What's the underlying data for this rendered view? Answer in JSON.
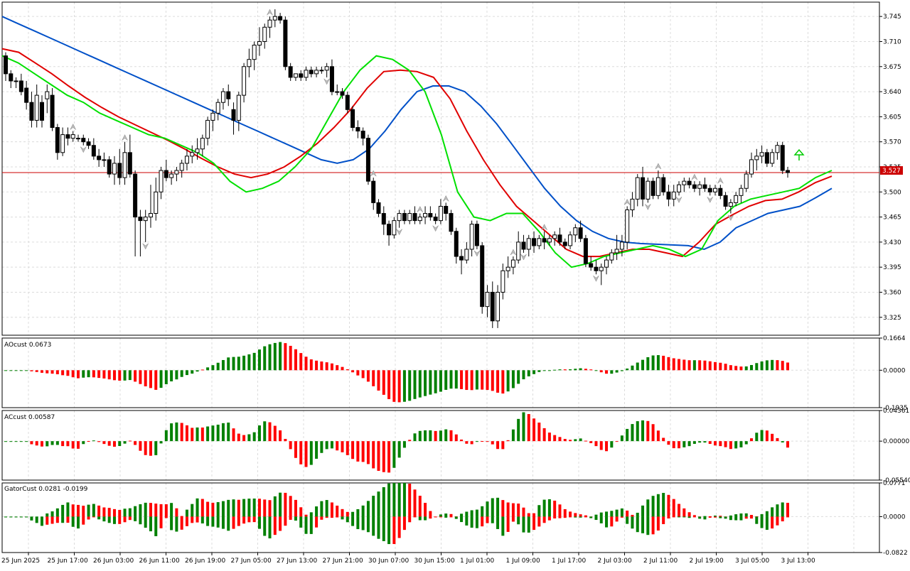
{
  "chart_data": [
    {
      "type": "candlestick",
      "pane": "price",
      "ylim": [
        3.3,
        3.765
      ],
      "y_ticks": [
        "3.745",
        "3.710",
        "3.675",
        "3.640",
        "3.605",
        "3.570",
        "3.535",
        "3.500",
        "3.465",
        "3.430",
        "3.395",
        "3.360",
        "3.325"
      ],
      "current_price_label": "3.527",
      "current_price": 3.527,
      "ohlc": [
        [
          3.69,
          3.695,
          3.655,
          3.665
        ],
        [
          3.665,
          3.67,
          3.645,
          3.655
        ],
        [
          3.655,
          3.66,
          3.645,
          3.655
        ],
        [
          3.655,
          3.665,
          3.635,
          3.64
        ],
        [
          3.645,
          3.655,
          3.615,
          3.625
        ],
        [
          3.625,
          3.64,
          3.59,
          3.6
        ],
        [
          3.6,
          3.65,
          3.59,
          3.635
        ],
        [
          3.625,
          3.635,
          3.59,
          3.6
        ],
        [
          3.63,
          3.65,
          3.61,
          3.64
        ],
        [
          3.635,
          3.645,
          3.585,
          3.59
        ],
        [
          3.59,
          3.595,
          3.545,
          3.555
        ],
        [
          3.555,
          3.59,
          3.55,
          3.58
        ],
        [
          3.58,
          3.59,
          3.565,
          3.575
        ],
        [
          3.575,
          3.585,
          3.57,
          3.58
        ],
        [
          3.575,
          3.58,
          3.57,
          3.575
        ],
        [
          3.575,
          3.58,
          3.565,
          3.57
        ],
        [
          3.57,
          3.575,
          3.56,
          3.565
        ],
        [
          3.565,
          3.575,
          3.545,
          3.55
        ],
        [
          3.55,
          3.56,
          3.535,
          3.545
        ],
        [
          3.545,
          3.555,
          3.535,
          3.545
        ],
        [
          3.545,
          3.55,
          3.52,
          3.525
        ],
        [
          3.525,
          3.55,
          3.51,
          3.54
        ],
        [
          3.54,
          3.56,
          3.51,
          3.52
        ],
        [
          3.52,
          3.57,
          3.51,
          3.555
        ],
        [
          3.555,
          3.58,
          3.52,
          3.525
        ],
        [
          3.525,
          3.53,
          3.41,
          3.465
        ],
        [
          3.465,
          3.475,
          3.41,
          3.46
        ],
        [
          3.46,
          3.475,
          3.43,
          3.465
        ],
        [
          3.465,
          3.51,
          3.45,
          3.47
        ],
        [
          3.47,
          3.52,
          3.46,
          3.5
        ],
        [
          3.5,
          3.535,
          3.49,
          3.53
        ],
        [
          3.53,
          3.545,
          3.515,
          3.52
        ],
        [
          3.52,
          3.53,
          3.51,
          3.525
        ],
        [
          3.525,
          3.535,
          3.515,
          3.53
        ],
        [
          3.53,
          3.545,
          3.52,
          3.54
        ],
        [
          3.54,
          3.56,
          3.53,
          3.55
        ],
        [
          3.55,
          3.565,
          3.54,
          3.555
        ],
        [
          3.555,
          3.575,
          3.545,
          3.56
        ],
        [
          3.56,
          3.58,
          3.55,
          3.575
        ],
        [
          3.575,
          3.605,
          3.565,
          3.6
        ],
        [
          3.6,
          3.615,
          3.585,
          3.61
        ],
        [
          3.61,
          3.63,
          3.6,
          3.625
        ],
        [
          3.625,
          3.645,
          3.615,
          3.64
        ],
        [
          3.64,
          3.65,
          3.62,
          3.63
        ],
        [
          3.615,
          3.625,
          3.58,
          3.6
        ],
        [
          3.6,
          3.64,
          3.585,
          3.635
        ],
        [
          3.635,
          3.68,
          3.625,
          3.675
        ],
        [
          3.675,
          3.7,
          3.66,
          3.685
        ],
        [
          3.685,
          3.71,
          3.67,
          3.705
        ],
        [
          3.705,
          3.73,
          3.69,
          3.71
        ],
        [
          3.71,
          3.735,
          3.7,
          3.73
        ],
        [
          3.73,
          3.745,
          3.715,
          3.74
        ],
        [
          3.74,
          3.755,
          3.73,
          3.745
        ],
        [
          3.745,
          3.75,
          3.735,
          3.74
        ],
        [
          3.74,
          3.745,
          3.67,
          3.675
        ],
        [
          3.675,
          3.68,
          3.655,
          3.66
        ],
        [
          3.66,
          3.665,
          3.655,
          3.665
        ],
        [
          3.665,
          3.67,
          3.655,
          3.66
        ],
        [
          3.66,
          3.675,
          3.655,
          3.67
        ],
        [
          3.67,
          3.675,
          3.66,
          3.665
        ],
        [
          3.665,
          3.675,
          3.66,
          3.67
        ],
        [
          3.67,
          3.675,
          3.665,
          3.67
        ],
        [
          3.67,
          3.68,
          3.66,
          3.675
        ],
        [
          3.675,
          3.685,
          3.635,
          3.64
        ],
        [
          3.64,
          3.65,
          3.635,
          3.64
        ],
        [
          3.64,
          3.645,
          3.63,
          3.635
        ],
        [
          3.635,
          3.64,
          3.61,
          3.615
        ],
        [
          3.615,
          3.62,
          3.585,
          3.59
        ],
        [
          3.59,
          3.6,
          3.575,
          3.585
        ],
        [
          3.585,
          3.59,
          3.565,
          3.575
        ],
        [
          3.575,
          3.58,
          3.51,
          3.515
        ],
        [
          3.515,
          3.52,
          3.475,
          3.485
        ],
        [
          3.485,
          3.49,
          3.465,
          3.47
        ],
        [
          3.47,
          3.48,
          3.44,
          3.455
        ],
        [
          3.455,
          3.46,
          3.425,
          3.44
        ],
        [
          3.44,
          3.465,
          3.435,
          3.46
        ],
        [
          3.46,
          3.475,
          3.45,
          3.47
        ],
        [
          3.47,
          3.475,
          3.455,
          3.46
        ],
        [
          3.46,
          3.475,
          3.455,
          3.47
        ],
        [
          3.47,
          3.48,
          3.455,
          3.46
        ],
        [
          3.46,
          3.47,
          3.455,
          3.465
        ],
        [
          3.465,
          3.48,
          3.455,
          3.47
        ],
        [
          3.47,
          3.48,
          3.46,
          3.465
        ],
        [
          3.465,
          3.47,
          3.455,
          3.46
        ],
        [
          3.46,
          3.49,
          3.455,
          3.48
        ],
        [
          3.48,
          3.485,
          3.46,
          3.47
        ],
        [
          3.47,
          3.475,
          3.44,
          3.445
        ],
        [
          3.445,
          3.45,
          3.4,
          3.41
        ],
        [
          3.41,
          3.42,
          3.385,
          3.405
        ],
        [
          3.405,
          3.43,
          3.4,
          3.42
        ],
        [
          3.42,
          3.46,
          3.41,
          3.455
        ],
        [
          3.455,
          3.46,
          3.42,
          3.425
        ],
        [
          3.425,
          3.43,
          3.33,
          3.34
        ],
        [
          3.34,
          3.37,
          3.325,
          3.36
        ],
        [
          3.36,
          3.375,
          3.31,
          3.32
        ],
        [
          3.32,
          3.37,
          3.31,
          3.36
        ],
        [
          3.36,
          3.4,
          3.35,
          3.39
        ],
        [
          3.39,
          3.41,
          3.38,
          3.395
        ],
        [
          3.395,
          3.41,
          3.385,
          3.405
        ],
        [
          3.405,
          3.445,
          3.4,
          3.43
        ],
        [
          3.43,
          3.44,
          3.415,
          3.42
        ],
        [
          3.42,
          3.44,
          3.41,
          3.435
        ],
        [
          3.435,
          3.445,
          3.415,
          3.425
        ],
        [
          3.425,
          3.44,
          3.42,
          3.435
        ],
        [
          3.435,
          3.445,
          3.42,
          3.43
        ],
        [
          3.43,
          3.44,
          3.425,
          3.435
        ],
        [
          3.435,
          3.445,
          3.425,
          3.44
        ],
        [
          3.44,
          3.45,
          3.425,
          3.43
        ],
        [
          3.43,
          3.435,
          3.42,
          3.425
        ],
        [
          3.425,
          3.445,
          3.42,
          3.44
        ],
        [
          3.44,
          3.455,
          3.43,
          3.45
        ],
        [
          3.45,
          3.46,
          3.43,
          3.435
        ],
        [
          3.435,
          3.44,
          3.395,
          3.4
        ],
        [
          3.4,
          3.41,
          3.39,
          3.395
        ],
        [
          3.395,
          3.405,
          3.385,
          3.39
        ],
        [
          3.39,
          3.4,
          3.37,
          3.395
        ],
        [
          3.395,
          3.41,
          3.385,
          3.405
        ],
        [
          3.405,
          3.42,
          3.4,
          3.415
        ],
        [
          3.415,
          3.44,
          3.405,
          3.42
        ],
        [
          3.42,
          3.44,
          3.41,
          3.43
        ],
        [
          3.43,
          3.48,
          3.42,
          3.475
        ],
        [
          3.475,
          3.5,
          3.465,
          3.49
        ],
        [
          3.49,
          3.525,
          3.48,
          3.52
        ],
        [
          3.52,
          3.535,
          3.48,
          3.49
        ],
        [
          3.49,
          3.52,
          3.485,
          3.515
        ],
        [
          3.515,
          3.52,
          3.49,
          3.495
        ],
        [
          3.495,
          3.53,
          3.49,
          3.52
        ],
        [
          3.52,
          3.525,
          3.495,
          3.5
        ],
        [
          3.5,
          3.51,
          3.48,
          3.49
        ],
        [
          3.49,
          3.51,
          3.48,
          3.5
        ],
        [
          3.5,
          3.515,
          3.495,
          3.51
        ],
        [
          3.51,
          3.52,
          3.5,
          3.515
        ],
        [
          3.515,
          3.52,
          3.505,
          3.51
        ],
        [
          3.51,
          3.515,
          3.5,
          3.505
        ],
        [
          3.505,
          3.515,
          3.495,
          3.51
        ],
        [
          3.51,
          3.52,
          3.5,
          3.505
        ],
        [
          3.505,
          3.51,
          3.495,
          3.5
        ],
        [
          3.5,
          3.51,
          3.495,
          3.505
        ],
        [
          3.505,
          3.51,
          3.49,
          3.495
        ],
        [
          3.495,
          3.5,
          3.475,
          3.48
        ],
        [
          3.48,
          3.49,
          3.47,
          3.485
        ],
        [
          3.485,
          3.5,
          3.48,
          3.495
        ],
        [
          3.495,
          3.51,
          3.485,
          3.505
        ],
        [
          3.505,
          3.53,
          3.5,
          3.525
        ],
        [
          3.525,
          3.555,
          3.52,
          3.545
        ],
        [
          3.545,
          3.56,
          3.53,
          3.55
        ],
        [
          3.55,
          3.565,
          3.54,
          3.555
        ],
        [
          3.555,
          3.56,
          3.535,
          3.54
        ],
        [
          3.54,
          3.56,
          3.535,
          3.555
        ],
        [
          3.555,
          3.57,
          3.545,
          3.565
        ],
        [
          3.565,
          3.57,
          3.525,
          3.53
        ],
        [
          3.53,
          3.535,
          3.52,
          3.527
        ]
      ],
      "series": [
        {
          "name": "",
          "color": "#0050c8",
          "role": "alligator-jaw",
          "values": [
            3.745,
            3.735,
            3.725,
            3.715,
            3.705,
            3.695,
            3.685,
            3.675,
            3.665,
            3.655,
            3.645,
            3.635,
            3.625,
            3.615,
            3.605,
            3.595,
            3.585,
            3.575,
            3.565,
            3.555,
            3.545,
            3.54,
            3.545,
            3.56,
            3.585,
            3.615,
            3.64,
            3.648,
            3.648,
            3.64,
            3.62,
            3.595,
            3.565,
            3.535,
            3.505,
            3.48,
            3.46,
            3.445,
            3.435,
            3.43,
            3.428,
            3.427,
            3.426,
            3.425,
            3.42,
            3.43,
            3.45,
            3.46,
            3.47,
            3.475,
            3.48,
            3.492,
            3.505
          ]
        },
        {
          "name": "",
          "color": "#e00000",
          "role": "alligator-teeth",
          "values": [
            3.7,
            3.695,
            3.68,
            3.665,
            3.648,
            3.632,
            3.618,
            3.605,
            3.594,
            3.583,
            3.572,
            3.56,
            3.547,
            3.535,
            3.525,
            3.52,
            3.525,
            3.535,
            3.55,
            3.568,
            3.59,
            3.615,
            3.645,
            3.668,
            3.67,
            3.668,
            3.66,
            3.63,
            3.585,
            3.545,
            3.51,
            3.48,
            3.46,
            3.44,
            3.42,
            3.41,
            3.41,
            3.415,
            3.42,
            3.42,
            3.415,
            3.41,
            3.43,
            3.455,
            3.468,
            3.48,
            3.488,
            3.49,
            3.5,
            3.513,
            3.522
          ]
        },
        {
          "name": "",
          "color": "#00e000",
          "role": "alligator-lips",
          "values": [
            3.69,
            3.68,
            3.665,
            3.65,
            3.635,
            3.625,
            3.61,
            3.6,
            3.59,
            3.58,
            3.575,
            3.565,
            3.555,
            3.54,
            3.515,
            3.5,
            3.505,
            3.515,
            3.535,
            3.56,
            3.6,
            3.64,
            3.67,
            3.69,
            3.685,
            3.67,
            3.64,
            3.58,
            3.5,
            3.465,
            3.46,
            3.47,
            3.47,
            3.445,
            3.415,
            3.395,
            3.4,
            3.41,
            3.415,
            3.42,
            3.425,
            3.42,
            3.41,
            3.42,
            3.46,
            3.48,
            3.49,
            3.495,
            3.5,
            3.505,
            3.52,
            3.53
          ]
        }
      ]
    },
    {
      "type": "histogram",
      "pane": "AOcust",
      "label": "AOcust 0.0673",
      "ylim": [
        -0.1935,
        0.1664
      ],
      "y_ticks": [
        "0.1664",
        "0.0000",
        "-0.1935"
      ],
      "colors": {
        "up": "#008000",
        "down": "#ff0000"
      }
    },
    {
      "type": "histogram",
      "pane": "ACcust",
      "label": "ACcust 0.00587",
      "ylim": [
        -0.0554,
        0.04361
      ],
      "y_ticks": [
        "0.04361",
        "0.00000",
        "-0.05540"
      ],
      "colors": {
        "up": "#008000",
        "down": "#ff0000"
      }
    },
    {
      "type": "histogram",
      "pane": "GatorCust",
      "label": "GatorCust 0.0281 -0.0199",
      "ylim": [
        -0.0822,
        0.0771
      ],
      "y_ticks": [
        "0.0771",
        "0.0000",
        "-0.0822"
      ],
      "colors": {
        "up": "#008000",
        "down": "#ff0000"
      }
    }
  ],
  "x_labels": [
    "25 Jun 2025",
    "25 Jun 17:00",
    "26 Jun 03:00",
    "26 Jun 11:00",
    "26 Jun 19:00",
    "27 Jun 05:00",
    "27 Jun 13:00",
    "27 Jun 21:00",
    "30 Jun 07:00",
    "30 Jun 15:00",
    "1 Jul 01:00",
    "1 Jul 09:00",
    "1 Jul 17:00",
    "2 Jul 03:00",
    "2 Jul 11:00",
    "2 Jul 19:00",
    "3 Jul 05:00",
    "3 Jul 13:00"
  ]
}
